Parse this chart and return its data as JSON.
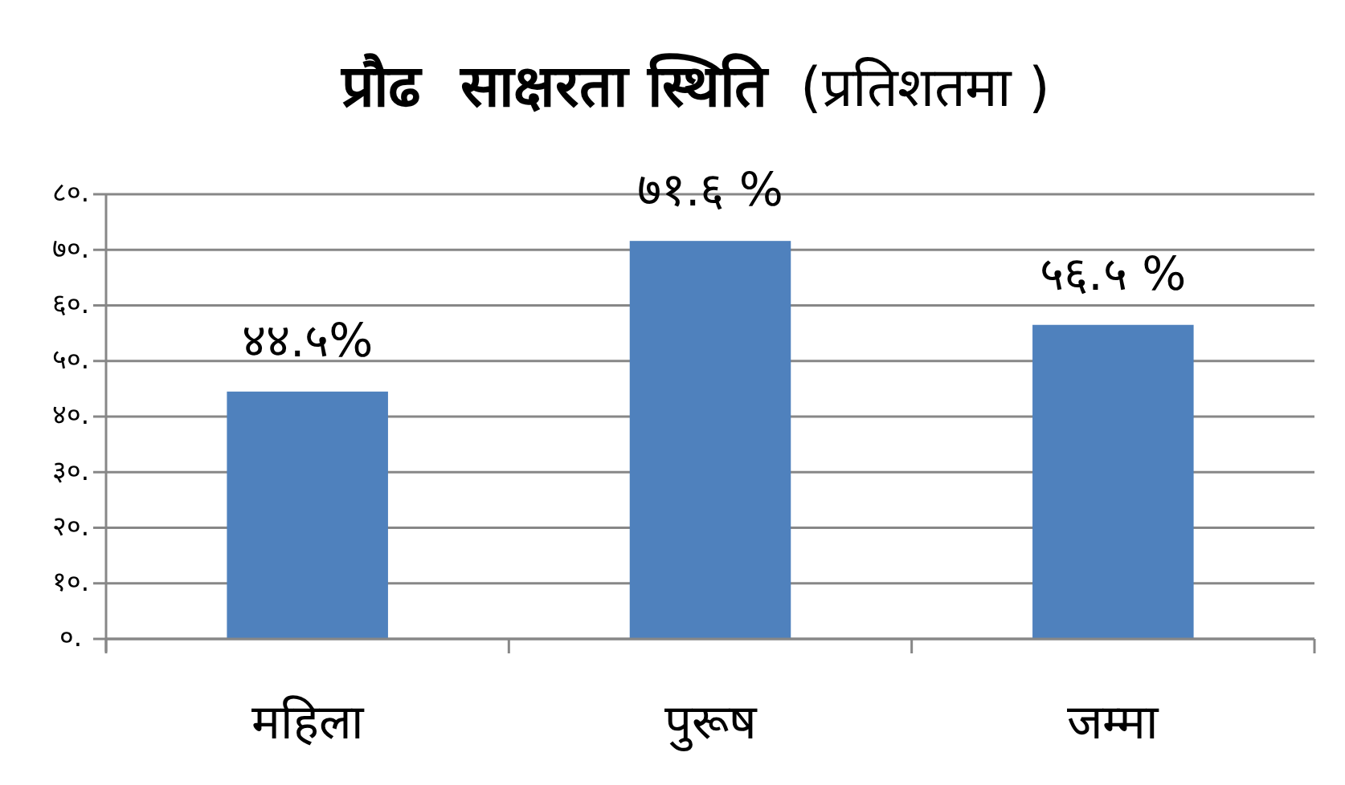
{
  "chart_data": {
    "type": "bar",
    "title": "प्रौढ  साक्षरता स्थिति",
    "subtitle": "(प्रतिशतमा )",
    "categories": [
      "महिला",
      "पुरूष",
      "जम्मा"
    ],
    "values": [
      44.5,
      71.6,
      56.5
    ],
    "value_labels": [
      "४४.५%",
      "७१.६ %",
      "५६.५ %"
    ],
    "color": "#4f81bd",
    "ylim": [
      0,
      80
    ],
    "yticks": [
      {
        "value": 0,
        "label": "०."
      },
      {
        "value": 10,
        "label": "१०."
      },
      {
        "value": 20,
        "label": "२०."
      },
      {
        "value": 30,
        "label": "३०."
      },
      {
        "value": 40,
        "label": "४०."
      },
      {
        "value": 50,
        "label": "५०."
      },
      {
        "value": 60,
        "label": "६०."
      },
      {
        "value": 70,
        "label": "७०."
      },
      {
        "value": 80,
        "label": "८०."
      }
    ],
    "grid": "y"
  }
}
